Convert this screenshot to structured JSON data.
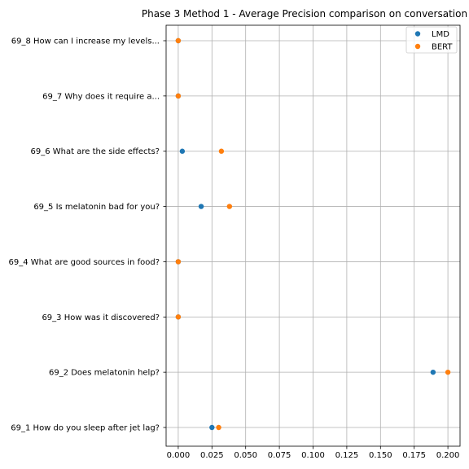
{
  "chart_data": {
    "type": "scatter",
    "title": "Phase 3 Method 1 - Average Precision comparison on conversation",
    "xlabel": "",
    "ylabel": "",
    "grid": true,
    "legend_position": "top-right",
    "xlim": [
      -0.009,
      0.209
    ],
    "x_ticks": [
      0.0,
      0.025,
      0.05,
      0.075,
      0.1,
      0.125,
      0.15,
      0.175,
      0.2
    ],
    "x_tick_labels": [
      "0.000",
      "0.025",
      "0.050",
      "0.075",
      "0.100",
      "0.125",
      "0.150",
      "0.175",
      "0.200"
    ],
    "categories": [
      "69_1 How do you sleep after jet lag?",
      "69_2 Does melatonin help?",
      "69_3 How was it discovered?",
      "69_4 What are good sources in food?",
      "69_5 Is melatonin bad for you?",
      "69_6 What are the side effects?",
      "69_7 Why does it require a...",
      "69_8 How can I increase my levels..."
    ],
    "series": [
      {
        "name": "LMD",
        "color": "#1f77b4",
        "values": [
          0.025,
          0.189,
          0.0,
          0.0,
          0.017,
          0.003,
          0.0,
          0.0
        ]
      },
      {
        "name": "BERT",
        "color": "#ff7f0e",
        "values": [
          0.03,
          0.2,
          0.0,
          0.0,
          0.038,
          0.032,
          0.0,
          0.0
        ]
      }
    ]
  }
}
